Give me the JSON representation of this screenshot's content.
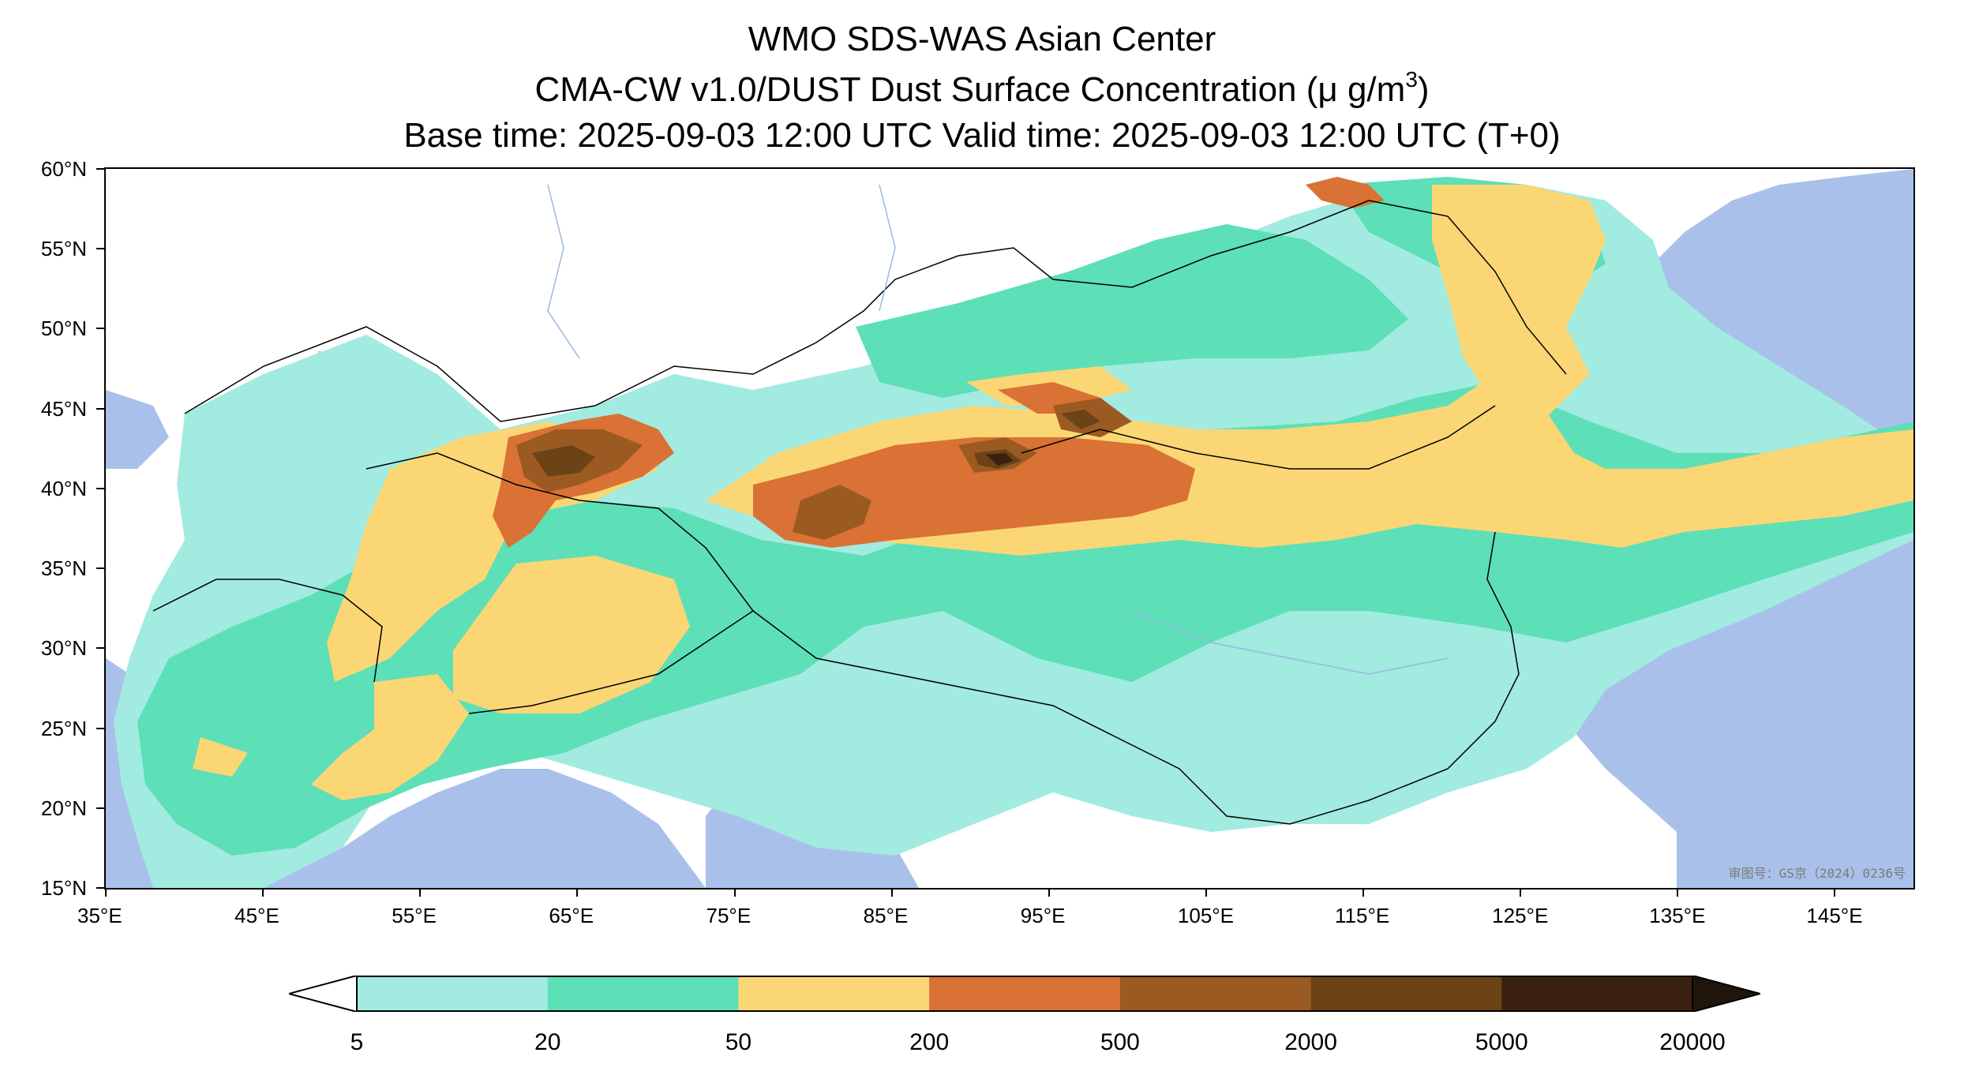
{
  "title": {
    "line1": "WMO SDS-WAS Asian Center",
    "line2_main": "CMA-CW v1.0/DUST Dust Surface Concentration (μ g/m",
    "line2_sup": "3",
    "line2_end": ")",
    "line3": "Base time: 2025-09-03 12:00 UTC Valid time: 2025-09-03 12:00 UTC (T+0)"
  },
  "map": {
    "lon_range": [
      35,
      150
    ],
    "lat_range": [
      15,
      60
    ],
    "lat_ticks": [
      "60°N",
      "55°N",
      "50°N",
      "45°N",
      "40°N",
      "35°N",
      "30°N",
      "25°N",
      "20°N",
      "15°N"
    ],
    "lon_ticks": [
      "35°E",
      "45°E",
      "55°E",
      "65°E",
      "75°E",
      "85°E",
      "95°E",
      "105°E",
      "115°E",
      "125°E",
      "135°E",
      "145°E"
    ],
    "approval_number": "审图号：GS京（2024）0236号",
    "ocean_color": "#a9c1ea",
    "land_color": "#ffffff"
  },
  "colorbar": {
    "labels": [
      "5",
      "20",
      "50",
      "200",
      "500",
      "2000",
      "5000",
      "20000"
    ],
    "colors": [
      "#a1ebe0",
      "#5ddfb7",
      "#fbd675",
      "#d97234",
      "#9c5a23",
      "#6b4317",
      "#3b2210"
    ]
  }
}
